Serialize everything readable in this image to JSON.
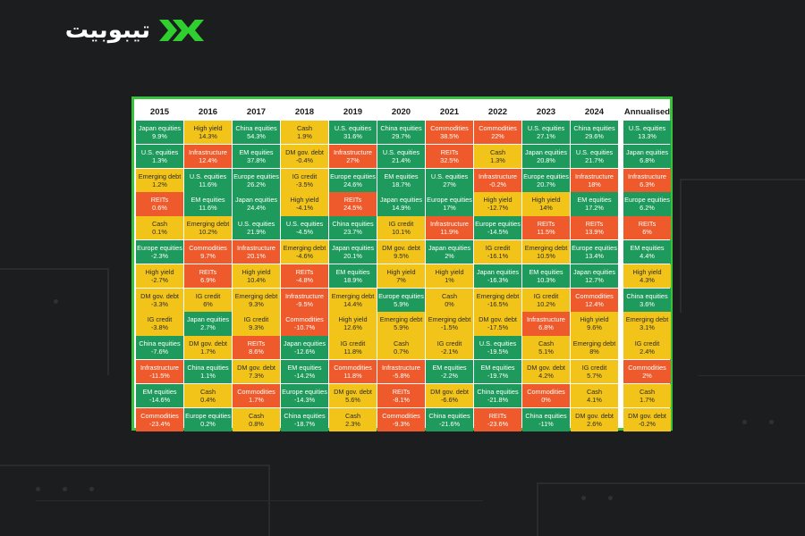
{
  "colors": {
    "background": "#1c1d1f",
    "card_border": "#37c23a",
    "green": "#1e9a5c",
    "yellow": "#f2c419",
    "red": "#ee5a2b",
    "logo": "#ffffff",
    "logo_mark": "#2fcf2f"
  },
  "logo": {
    "text": "تیبوبیت",
    "icon": "double-chevron-logo-icon"
  },
  "chart_data": {
    "type": "table",
    "columns": [
      "2015",
      "2016",
      "2017",
      "2018",
      "2019",
      "2020",
      "2021",
      "2022",
      "2023",
      "2024",
      "Annualised"
    ],
    "color_legend": {
      "g": "green",
      "y": "yellow",
      "r": "red"
    },
    "cells": [
      [
        [
          "Japan equities",
          "9.9%",
          "g"
        ],
        [
          "High yield",
          "14.3%",
          "y"
        ],
        [
          "China equities",
          "54.3%",
          "g"
        ],
        [
          "Cash",
          "1.9%",
          "y"
        ],
        [
          "U.S. equities",
          "31.6%",
          "g"
        ],
        [
          "China equities",
          "29.7%",
          "g"
        ],
        [
          "Commodities",
          "38.5%",
          "r"
        ],
        [
          "Commodities",
          "22%",
          "r"
        ],
        [
          "U.S. equities",
          "27.1%",
          "g"
        ],
        [
          "China equities",
          "29.6%",
          "g"
        ],
        [
          "U.S. equities",
          "13.3%",
          "g"
        ]
      ],
      [
        [
          "U.S. equities",
          "1.3%",
          "g"
        ],
        [
          "Infrastructure",
          "12.4%",
          "r"
        ],
        [
          "EM equities",
          "37.8%",
          "g"
        ],
        [
          "DM gov. debt",
          "-0.4%",
          "y"
        ],
        [
          "Infrastructure",
          "27%",
          "r"
        ],
        [
          "U.S. equities",
          "21.4%",
          "g"
        ],
        [
          "REITs",
          "32.5%",
          "r"
        ],
        [
          "Cash",
          "1.3%",
          "y"
        ],
        [
          "Japan equities",
          "20.8%",
          "g"
        ],
        [
          "U.S. equities",
          "21.7%",
          "g"
        ],
        [
          "Japan equities",
          "6.8%",
          "g"
        ]
      ],
      [
        [
          "Emerging debt",
          "1.2%",
          "y"
        ],
        [
          "U.S. equities",
          "11.6%",
          "g"
        ],
        [
          "Europe equities",
          "26.2%",
          "g"
        ],
        [
          "IG credit",
          "-3.5%",
          "y"
        ],
        [
          "Europe equities",
          "24.6%",
          "g"
        ],
        [
          "EM equities",
          "18.7%",
          "g"
        ],
        [
          "U.S. equities",
          "27%",
          "g"
        ],
        [
          "Infrastructure",
          "-0.2%",
          "r"
        ],
        [
          "Europe equities",
          "20.7%",
          "g"
        ],
        [
          "Infrastructure",
          "18%",
          "r"
        ],
        [
          "Infrastructure",
          "6.3%",
          "r"
        ]
      ],
      [
        [
          "REITs",
          "0.6%",
          "r"
        ],
        [
          "EM equities",
          "11.6%",
          "g"
        ],
        [
          "Japan equities",
          "24.4%",
          "g"
        ],
        [
          "High yield",
          "-4.1%",
          "y"
        ],
        [
          "REITs",
          "24.5%",
          "r"
        ],
        [
          "Japan equities",
          "14.9%",
          "g"
        ],
        [
          "Europe equities",
          "17%",
          "g"
        ],
        [
          "High yield",
          "-12.7%",
          "y"
        ],
        [
          "High yield",
          "14%",
          "y"
        ],
        [
          "EM equities",
          "17.2%",
          "g"
        ],
        [
          "Europe equities",
          "6.2%",
          "g"
        ]
      ],
      [
        [
          "Cash",
          "0.1%",
          "y"
        ],
        [
          "Emerging debt",
          "10.2%",
          "y"
        ],
        [
          "U.S. equities",
          "21.9%",
          "g"
        ],
        [
          "U.S. equities",
          "-4.5%",
          "g"
        ],
        [
          "China equities",
          "23.7%",
          "g"
        ],
        [
          "IG credit",
          "10.1%",
          "y"
        ],
        [
          "Infrastructure",
          "11.9%",
          "r"
        ],
        [
          "Europe equities",
          "-14.5%",
          "g"
        ],
        [
          "REITs",
          "11.5%",
          "r"
        ],
        [
          "REITs",
          "13.9%",
          "r"
        ],
        [
          "REITs",
          "6%",
          "r"
        ]
      ],
      [
        [
          "Europe equities",
          "-2.3%",
          "g"
        ],
        [
          "Commodities",
          "9.7%",
          "r"
        ],
        [
          "Infrastructure",
          "20.1%",
          "r"
        ],
        [
          "Emerging debt",
          "-4.6%",
          "y"
        ],
        [
          "Japan equities",
          "20.1%",
          "g"
        ],
        [
          "DM gov. debt",
          "9.5%",
          "y"
        ],
        [
          "Japan equities",
          "2%",
          "g"
        ],
        [
          "IG credit",
          "-16.1%",
          "y"
        ],
        [
          "Emerging debt",
          "10.5%",
          "y"
        ],
        [
          "Europe equities",
          "13.4%",
          "g"
        ],
        [
          "EM equities",
          "4.4%",
          "g"
        ]
      ],
      [
        [
          "High yield",
          "-2.7%",
          "y"
        ],
        [
          "REITs",
          "6.9%",
          "r"
        ],
        [
          "High yield",
          "10.4%",
          "y"
        ],
        [
          "REITs",
          "-4.8%",
          "r"
        ],
        [
          "EM equities",
          "18.9%",
          "g"
        ],
        [
          "High yield",
          "7%",
          "y"
        ],
        [
          "High yield",
          "1%",
          "y"
        ],
        [
          "Japan equities",
          "-16.3%",
          "g"
        ],
        [
          "EM equities",
          "10.3%",
          "g"
        ],
        [
          "Japan equities",
          "12.7%",
          "g"
        ],
        [
          "High yield",
          "4.3%",
          "y"
        ]
      ],
      [
        [
          "DM gov. debt",
          "-3.3%",
          "y"
        ],
        [
          "IG credit",
          "6%",
          "y"
        ],
        [
          "Emerging debt",
          "9.3%",
          "y"
        ],
        [
          "Infrastructure",
          "-9.5%",
          "r"
        ],
        [
          "Emerging debt",
          "14.4%",
          "y"
        ],
        [
          "Europe equities",
          "5.9%",
          "g"
        ],
        [
          "Cash",
          "0%",
          "y"
        ],
        [
          "Emerging debt",
          "-16.5%",
          "y"
        ],
        [
          "IG credit",
          "10.2%",
          "y"
        ],
        [
          "Commodities",
          "12.4%",
          "r"
        ],
        [
          "China equities",
          "3.6%",
          "g"
        ]
      ],
      [
        [
          "IG credit",
          "-3.8%",
          "y"
        ],
        [
          "Japan equities",
          "2.7%",
          "g"
        ],
        [
          "IG credit",
          "9.3%",
          "y"
        ],
        [
          "Commodities",
          "-10.7%",
          "r"
        ],
        [
          "High yield",
          "12.6%",
          "y"
        ],
        [
          "Emerging debt",
          "5.9%",
          "y"
        ],
        [
          "Emerging debt",
          "-1.5%",
          "y"
        ],
        [
          "DM gov. debt",
          "-17.5%",
          "y"
        ],
        [
          "Infrastructure",
          "6.8%",
          "r"
        ],
        [
          "High yield",
          "9.6%",
          "y"
        ],
        [
          "Emerging debt",
          "3.1%",
          "y"
        ]
      ],
      [
        [
          "China equities",
          "-7.6%",
          "g"
        ],
        [
          "DM gov. debt",
          "1.7%",
          "y"
        ],
        [
          "REITs",
          "8.6%",
          "r"
        ],
        [
          "Japan equities",
          "-12.6%",
          "g"
        ],
        [
          "IG credit",
          "11.8%",
          "y"
        ],
        [
          "Cash",
          "0.7%",
          "y"
        ],
        [
          "IG credit",
          "-2.1%",
          "y"
        ],
        [
          "U.S. equities",
          "-19.5%",
          "g"
        ],
        [
          "Cash",
          "5.1%",
          "y"
        ],
        [
          "Emerging debt",
          "8%",
          "y"
        ],
        [
          "IG credit",
          "2.4%",
          "y"
        ]
      ],
      [
        [
          "Infrastructure",
          "-11.5%",
          "r"
        ],
        [
          "China equities",
          "1.1%",
          "g"
        ],
        [
          "DM gov. debt",
          "7.3%",
          "y"
        ],
        [
          "EM equities",
          "-14.2%",
          "g"
        ],
        [
          "Commodities",
          "11.8%",
          "r"
        ],
        [
          "Infrastructure",
          "-5.8%",
          "r"
        ],
        [
          "EM equities",
          "-2.2%",
          "g"
        ],
        [
          "EM equities",
          "-19.7%",
          "g"
        ],
        [
          "DM gov. debt",
          "4.2%",
          "y"
        ],
        [
          "IG credit",
          "5.7%",
          "y"
        ],
        [
          "Commodities",
          "2%",
          "r"
        ]
      ],
      [
        [
          "EM equities",
          "-14.6%",
          "g"
        ],
        [
          "Cash",
          "0.4%",
          "y"
        ],
        [
          "Commodities",
          "1.7%",
          "r"
        ],
        [
          "Europe equities",
          "-14.3%",
          "g"
        ],
        [
          "DM gov. debt",
          "5.6%",
          "y"
        ],
        [
          "REITs",
          "-8.1%",
          "r"
        ],
        [
          "DM gov. debt",
          "-6.6%",
          "y"
        ],
        [
          "China equities",
          "-21.8%",
          "g"
        ],
        [
          "Commodities",
          "0%",
          "r"
        ],
        [
          "Cash",
          "4.1%",
          "y"
        ],
        [
          "Cash",
          "1.7%",
          "y"
        ]
      ],
      [
        [
          "Commodities",
          "-23.4%",
          "r"
        ],
        [
          "Europe equities",
          "0.2%",
          "g"
        ],
        [
          "Cash",
          "0.8%",
          "y"
        ],
        [
          "China equities",
          "-18.7%",
          "g"
        ],
        [
          "Cash",
          "2.3%",
          "y"
        ],
        [
          "Commodities",
          "-9.3%",
          "r"
        ],
        [
          "China equities",
          "-21.6%",
          "g"
        ],
        [
          "REITs",
          "-23.6%",
          "r"
        ],
        [
          "China equities",
          "-11%",
          "g"
        ],
        [
          "DM gov. debt",
          "2.6%",
          "y"
        ],
        [
          "DM gov. debt",
          "-0.2%",
          "y"
        ]
      ]
    ]
  }
}
